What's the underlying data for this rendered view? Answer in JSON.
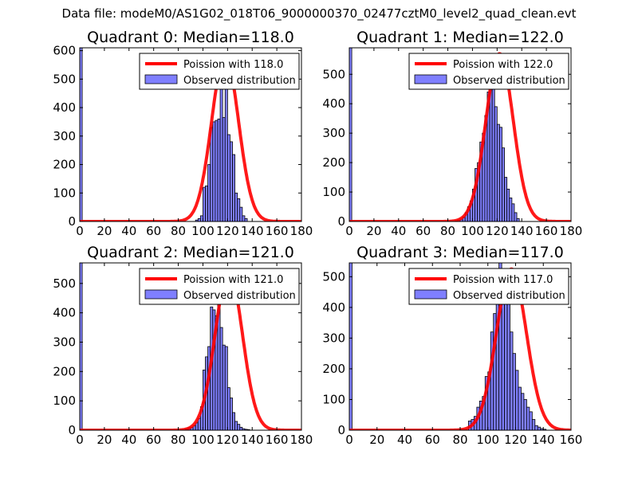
{
  "suptitle": "Data file: modeM0/AS1G02_018T06_9000000370_02477cztM0_level2_quad_clean.evt",
  "colors": {
    "bar": "#7f7fff",
    "curve": "#ff0000"
  },
  "chart_data": [
    {
      "type": "bar",
      "title": "Quadrant 0: Median=118.0",
      "xlim": [
        0,
        180
      ],
      "ylim": [
        0,
        610
      ],
      "xticks": [
        0,
        20,
        40,
        60,
        80,
        100,
        120,
        140,
        160,
        180
      ],
      "yticks": [
        0,
        100,
        200,
        300,
        400,
        500,
        600
      ],
      "legend": [
        "Poission with 118.0",
        "Observed distribution"
      ],
      "legend_position": "top-right",
      "median": 118,
      "curve_peak": 585,
      "bins": [
        0,
        94,
        96,
        98,
        100,
        102,
        104,
        106,
        108,
        110,
        112,
        114,
        116,
        118,
        120,
        122,
        124,
        126,
        128,
        130,
        132,
        134
      ],
      "values": [
        610,
        5,
        10,
        20,
        120,
        125,
        200,
        330,
        350,
        355,
        360,
        590,
        365,
        570,
        305,
        280,
        235,
        100,
        80,
        50,
        20,
        10
      ]
    },
    {
      "type": "bar",
      "title": "Quadrant 1: Median=122.0",
      "xlim": [
        0,
        180
      ],
      "ylim": [
        0,
        590
      ],
      "xticks": [
        0,
        20,
        40,
        60,
        80,
        100,
        120,
        140,
        160,
        180
      ],
      "yticks": [
        0,
        100,
        200,
        300,
        400,
        500
      ],
      "legend": [
        "Poission with 122.0",
        "Observed distribution"
      ],
      "legend_position": "top-right",
      "median": 122,
      "curve_peak": 570,
      "bins": [
        0,
        86,
        88,
        90,
        92,
        94,
        96,
        98,
        100,
        102,
        104,
        106,
        108,
        110,
        112,
        114,
        116,
        118,
        120,
        122,
        124,
        126,
        128,
        130,
        132,
        134,
        136
      ],
      "values": [
        590,
        2,
        5,
        8,
        15,
        30,
        50,
        70,
        110,
        180,
        200,
        270,
        300,
        360,
        440,
        450,
        570,
        390,
        330,
        320,
        250,
        150,
        110,
        80,
        60,
        30,
        10
      ]
    },
    {
      "type": "bar",
      "title": "Quadrant 2: Median=121.0",
      "xlim": [
        0,
        180
      ],
      "ylim": [
        0,
        570
      ],
      "xticks": [
        0,
        20,
        40,
        60,
        80,
        100,
        120,
        140,
        160,
        180
      ],
      "yticks": [
        0,
        100,
        200,
        300,
        400,
        500
      ],
      "legend": [
        "Poission with 121.0",
        "Observed distribution"
      ],
      "legend_position": "top-right",
      "median": 121,
      "curve_peak": 545,
      "bins": [
        0,
        86,
        88,
        90,
        92,
        94,
        96,
        98,
        100,
        102,
        104,
        106,
        108,
        110,
        112,
        114,
        116,
        118,
        120,
        122,
        124,
        126,
        128,
        130,
        132,
        134,
        136
      ],
      "values": [
        570,
        5,
        8,
        10,
        15,
        25,
        40,
        80,
        205,
        250,
        285,
        420,
        410,
        390,
        530,
        350,
        290,
        285,
        145,
        110,
        60,
        30,
        20,
        10,
        5,
        3,
        2
      ]
    },
    {
      "type": "bar",
      "title": "Quadrant 3: Median=117.0",
      "xlim": [
        0,
        160
      ],
      "ylim": [
        0,
        545
      ],
      "xticks": [
        0,
        20,
        40,
        60,
        80,
        100,
        120,
        140,
        160
      ],
      "yticks": [
        0,
        100,
        200,
        300,
        400,
        500
      ],
      "legend": [
        "Poission with 117.0",
        "Observed distribution"
      ],
      "legend_position": "top-right",
      "median": 117,
      "curve_peak": 525,
      "bins": [
        0,
        86,
        88,
        90,
        92,
        94,
        96,
        98,
        100,
        102,
        104,
        106,
        108,
        110,
        112,
        114,
        116,
        118,
        120,
        122,
        124,
        126,
        128,
        130,
        132,
        134,
        136,
        138,
        140
      ],
      "values": [
        545,
        30,
        35,
        45,
        75,
        95,
        110,
        175,
        190,
        320,
        380,
        420,
        545,
        520,
        440,
        430,
        320,
        250,
        195,
        140,
        120,
        100,
        75,
        60,
        35,
        15,
        10,
        5,
        3
      ]
    }
  ]
}
